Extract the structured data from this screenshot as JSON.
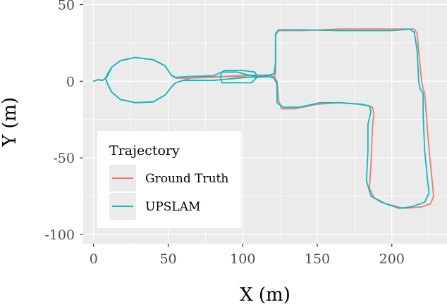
{
  "chart_data": {
    "type": "line",
    "xlabel": "X (m)",
    "ylabel": "Y (m)",
    "xlim": [
      -7,
      237
    ],
    "ylim": [
      -106,
      53
    ],
    "x_ticks": [
      0,
      50,
      100,
      150,
      200
    ],
    "y_ticks": [
      50,
      0,
      -50,
      -100
    ],
    "x_tick_labels": [
      "0",
      "50",
      "100",
      "150",
      "200"
    ],
    "y_tick_labels": [
      "50",
      "0",
      "-50",
      "-100"
    ],
    "grid": true,
    "panel_background": "#ebebeb",
    "legend": {
      "title": "Trajectory",
      "placement": "bottom-left inside plot",
      "entries": [
        "Ground Truth",
        "UPSLAM"
      ]
    },
    "series": [
      {
        "name": "Ground Truth",
        "color": "#f8766d",
        "points": [
          [
            0,
            0
          ],
          [
            3,
            1
          ],
          [
            6,
            0.5
          ],
          [
            9,
            3
          ],
          [
            12,
            9
          ],
          [
            18,
            13.5
          ],
          [
            28,
            15.5
          ],
          [
            40,
            14
          ],
          [
            48,
            10
          ],
          [
            52,
            4
          ],
          [
            55,
            2
          ],
          [
            62,
            2
          ],
          [
            80,
            2.5
          ],
          [
            87,
            3
          ],
          [
            98,
            3
          ],
          [
            110,
            2.5
          ],
          [
            118,
            3
          ],
          [
            121,
            2
          ],
          [
            122,
            6
          ],
          [
            122,
            30
          ],
          [
            124,
            33
          ],
          [
            140,
            33
          ],
          [
            165,
            34
          ],
          [
            185,
            34
          ],
          [
            200,
            34
          ],
          [
            215,
            34
          ],
          [
            217,
            31
          ],
          [
            218,
            20
          ],
          [
            220,
            0
          ],
          [
            221,
            -5
          ],
          [
            222,
            -8
          ],
          [
            223,
            -20
          ],
          [
            225,
            -45
          ],
          [
            227,
            -65
          ],
          [
            228,
            -75
          ],
          [
            226,
            -80
          ],
          [
            220,
            -82
          ],
          [
            208,
            -83
          ],
          [
            196,
            -80
          ],
          [
            188,
            -76
          ],
          [
            185,
            -70
          ],
          [
            186,
            -55
          ],
          [
            187,
            -30
          ],
          [
            188,
            -21
          ],
          [
            187,
            -17
          ],
          [
            180,
            -15
          ],
          [
            165,
            -14
          ],
          [
            150,
            -15
          ],
          [
            135,
            -18
          ],
          [
            126,
            -18
          ],
          [
            124,
            -12
          ],
          [
            123,
            0
          ],
          [
            121,
            3
          ],
          [
            118,
            4
          ],
          [
            108,
            4
          ],
          [
            96,
            3.5
          ],
          [
            86,
            3
          ],
          [
            77,
            3
          ],
          [
            65,
            2
          ],
          [
            60,
            0.5
          ],
          [
            55,
            -1
          ],
          [
            52,
            -4
          ],
          [
            48,
            -9
          ],
          [
            40,
            -13.5
          ],
          [
            28,
            -14
          ],
          [
            18,
            -12
          ],
          [
            12,
            -7
          ],
          [
            9,
            -1
          ],
          [
            8,
            2
          ],
          [
            9,
            4
          ],
          [
            12,
            9
          ]
        ]
      },
      {
        "name": "UPSLAM",
        "color": "#00bfc4",
        "points": [
          [
            0,
            0
          ],
          [
            3,
            1
          ],
          [
            6,
            0.5
          ],
          [
            9,
            3
          ],
          [
            12,
            9
          ],
          [
            18,
            13.5
          ],
          [
            28,
            15.5
          ],
          [
            40,
            14
          ],
          [
            48,
            10
          ],
          [
            52,
            4
          ],
          [
            55,
            2.5
          ],
          [
            62,
            3
          ],
          [
            80,
            3.5
          ],
          [
            86,
            6
          ],
          [
            88,
            7
          ],
          [
            100,
            7
          ],
          [
            108,
            6
          ],
          [
            110,
            3
          ],
          [
            106,
            -1
          ],
          [
            92,
            -1
          ],
          [
            86,
            -1
          ],
          [
            85,
            3
          ],
          [
            86,
            6
          ],
          [
            96,
            6
          ],
          [
            104,
            4
          ],
          [
            110,
            3
          ],
          [
            118,
            4
          ],
          [
            121,
            5
          ],
          [
            122,
            12
          ],
          [
            122,
            31
          ],
          [
            124,
            33.5
          ],
          [
            140,
            33.5
          ],
          [
            165,
            33
          ],
          [
            185,
            33
          ],
          [
            200,
            33
          ],
          [
            212,
            34
          ],
          [
            215,
            32
          ],
          [
            217,
            20
          ],
          [
            218,
            0
          ],
          [
            219,
            -5
          ],
          [
            221,
            -8
          ],
          [
            221,
            -22
          ],
          [
            222,
            -45
          ],
          [
            224,
            -65
          ],
          [
            225,
            -73
          ],
          [
            222,
            -79
          ],
          [
            213,
            -82
          ],
          [
            205,
            -83
          ],
          [
            193,
            -79
          ],
          [
            186,
            -75
          ],
          [
            183,
            -65
          ],
          [
            184,
            -45
          ],
          [
            184,
            -28
          ],
          [
            186,
            -20
          ],
          [
            185,
            -16
          ],
          [
            178,
            -15
          ],
          [
            165,
            -14
          ],
          [
            152,
            -14
          ],
          [
            138,
            -17
          ],
          [
            127,
            -17
          ],
          [
            123,
            -14
          ],
          [
            123,
            -2
          ],
          [
            121,
            2
          ],
          [
            118,
            3
          ],
          [
            108,
            3
          ],
          [
            97,
            2
          ],
          [
            80,
            0.5
          ],
          [
            68,
            0.5
          ],
          [
            60,
            0.5
          ],
          [
            55,
            -1
          ],
          [
            52,
            -4
          ],
          [
            48,
            -9
          ],
          [
            40,
            -13.5
          ],
          [
            28,
            -14
          ],
          [
            18,
            -12
          ],
          [
            12,
            -7
          ],
          [
            9,
            -1
          ],
          [
            8,
            2
          ],
          [
            9,
            4
          ],
          [
            12,
            9
          ]
        ]
      }
    ]
  }
}
